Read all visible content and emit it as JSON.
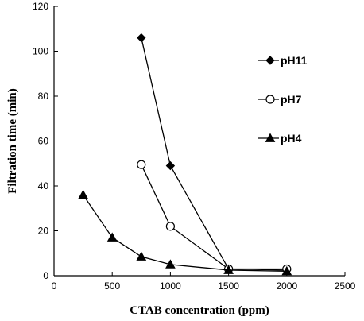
{
  "chart_data": {
    "type": "line",
    "title": "",
    "xlabel": "CTAB concentration (ppm)",
    "ylabel": "Filtration time (min)",
    "xlim": [
      0,
      2500
    ],
    "ylim": [
      0,
      120
    ],
    "xticks": [
      0,
      500,
      1000,
      1500,
      2000,
      2500
    ],
    "yticks": [
      0,
      20,
      40,
      60,
      80,
      100,
      120
    ],
    "grid": false,
    "legend_position": "right",
    "series": [
      {
        "name": "pH11",
        "marker": "diamond-filled",
        "x": [
          750,
          1000,
          1500,
          2000
        ],
        "y": [
          106,
          49,
          3,
          2.5
        ]
      },
      {
        "name": "pH7",
        "marker": "circle-open",
        "x": [
          750,
          1000,
          1500,
          2000
        ],
        "y": [
          49.5,
          22,
          3,
          3
        ]
      },
      {
        "name": "pH4",
        "marker": "triangle-filled",
        "x": [
          250,
          500,
          750,
          1000,
          1500,
          2000
        ],
        "y": [
          36,
          17,
          8.5,
          5,
          2.5,
          2
        ]
      }
    ]
  }
}
